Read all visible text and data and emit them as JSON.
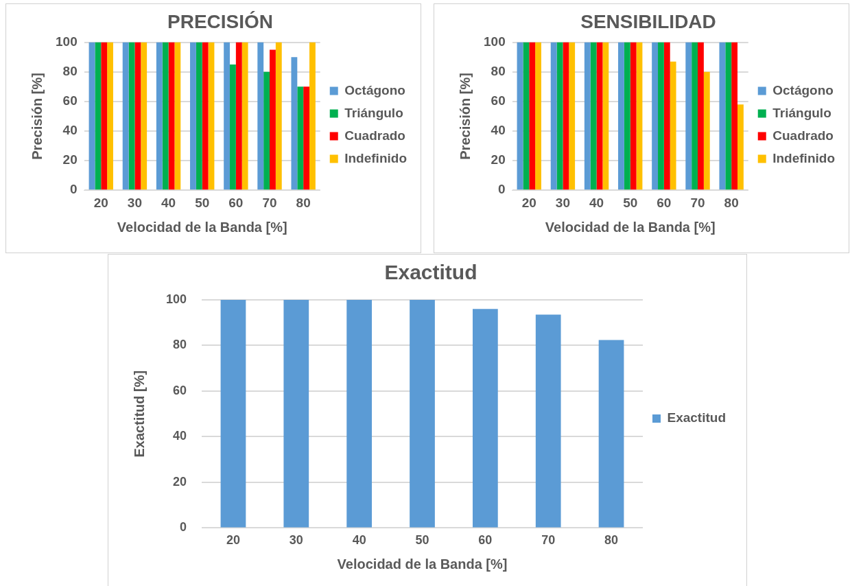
{
  "chart_data": [
    {
      "type": "bar",
      "title": "PRECISIÓN",
      "xlabel": "Velocidad de la Banda [%]",
      "ylabel": "Precisión [%]",
      "categories": [
        "20",
        "30",
        "40",
        "50",
        "60",
        "70",
        "80"
      ],
      "series": [
        {
          "name": "Octágono",
          "color": "#5b9bd5",
          "values": [
            100,
            100,
            100,
            100,
            100,
            100,
            90
          ]
        },
        {
          "name": "Triángulo",
          "color": "#00b050",
          "values": [
            100,
            100,
            100,
            100,
            85,
            80,
            70
          ]
        },
        {
          "name": "Cuadrado",
          "color": "#ff0000",
          "values": [
            100,
            100,
            100,
            100,
            100,
            95,
            70
          ]
        },
        {
          "name": "Indefinido",
          "color": "#ffc000",
          "values": [
            100,
            100,
            100,
            100,
            100,
            100,
            100
          ]
        }
      ],
      "ylim": [
        0,
        100
      ],
      "yticks": [
        0,
        20,
        40,
        60,
        80,
        100
      ],
      "grid": "y",
      "legend": "right"
    },
    {
      "type": "bar",
      "title": "SENSIBILIDAD",
      "xlabel": "Velocidad de la Banda [%]",
      "ylabel": "Precisión [%]",
      "categories": [
        "20",
        "30",
        "40",
        "50",
        "60",
        "70",
        "80"
      ],
      "series": [
        {
          "name": "Octágono",
          "color": "#5b9bd5",
          "values": [
            100,
            100,
            100,
            100,
            100,
            100,
            100
          ]
        },
        {
          "name": "Triángulo",
          "color": "#00b050",
          "values": [
            100,
            100,
            100,
            100,
            100,
            100,
            100
          ]
        },
        {
          "name": "Cuadrado",
          "color": "#ff0000",
          "values": [
            100,
            100,
            100,
            100,
            100,
            100,
            100
          ]
        },
        {
          "name": "Indefinido",
          "color": "#ffc000",
          "values": [
            100,
            100,
            100,
            100,
            87,
            80,
            58
          ]
        }
      ],
      "ylim": [
        0,
        100
      ],
      "yticks": [
        0,
        20,
        40,
        60,
        80,
        100
      ],
      "grid": "y",
      "legend": "right"
    },
    {
      "type": "bar",
      "title": "Exactitud",
      "xlabel": "Velocidad de la Banda [%]",
      "ylabel": "Exactitud [%]",
      "categories": [
        "20",
        "30",
        "40",
        "50",
        "60",
        "70",
        "80"
      ],
      "series": [
        {
          "name": "Exactitud",
          "color": "#5b9bd5",
          "values": [
            100,
            100,
            100,
            100,
            96,
            93.5,
            82.4
          ]
        }
      ],
      "ylim": [
        0,
        100
      ],
      "yticks": [
        0,
        20,
        40,
        60,
        80,
        100
      ],
      "grid": "y",
      "legend": "right"
    }
  ]
}
